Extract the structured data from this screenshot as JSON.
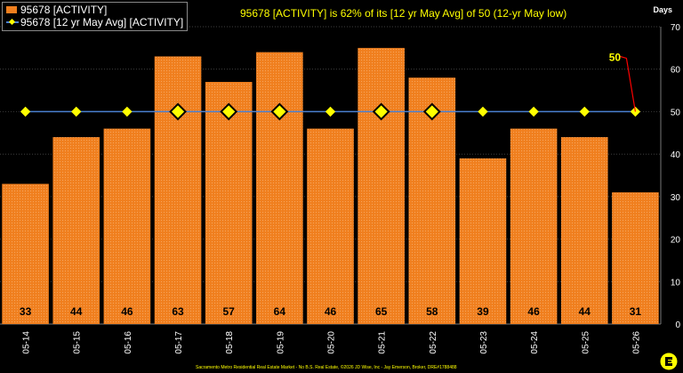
{
  "legend": {
    "bar_label": "95678 [ACTIVITY]",
    "line_label": "95678 [12 yr May Avg] [ACTIVITY]"
  },
  "title": "95678 [ACTIVITY] is 62% of its [12 yr May Avg] of 50 (12-yr May low)",
  "footer": "Sacramento Metro Residential Real Estate Market - No B.S. Real Estate, ©2026 JD Wise, Inc - Jay Emerson, Broker, DRE#1788488",
  "chart_data": {
    "type": "bar",
    "title": "95678 [ACTIVITY] is 62% of its [12 yr May Avg] of 50 (12-yr May low)",
    "ylabel": "Days",
    "ylim": [
      0,
      70
    ],
    "yticks": [
      0,
      10,
      20,
      30,
      40,
      50,
      60,
      70
    ],
    "categories": [
      "05-14",
      "05-15",
      "05-16",
      "05-17",
      "05-18",
      "05-19",
      "05-20",
      "05-21",
      "05-22",
      "05-23",
      "05-24",
      "05-25",
      "05-26"
    ],
    "series": [
      {
        "name": "95678 [ACTIVITY]",
        "type": "bar",
        "values": [
          33,
          44,
          46,
          63,
          57,
          64,
          46,
          65,
          58,
          39,
          46,
          44,
          31
        ],
        "color": "#f07f1e"
      },
      {
        "name": "95678 [12 yr May Avg] [ACTIVITY]",
        "type": "line",
        "values": [
          50,
          50,
          50,
          50,
          50,
          50,
          50,
          50,
          50,
          50,
          50,
          50,
          50
        ],
        "color": "#4a7fd0",
        "marker_color": "#ffff00",
        "large_markers": [
          false,
          false,
          false,
          true,
          true,
          true,
          false,
          true,
          true,
          false,
          false,
          false,
          false
        ]
      }
    ],
    "annotation": {
      "text": "50",
      "index": 12,
      "value": 50,
      "color": "#ffff00",
      "arrow_color": "#ff0000"
    },
    "grid": true,
    "background": "#000000",
    "label_color": "#ffffff"
  }
}
